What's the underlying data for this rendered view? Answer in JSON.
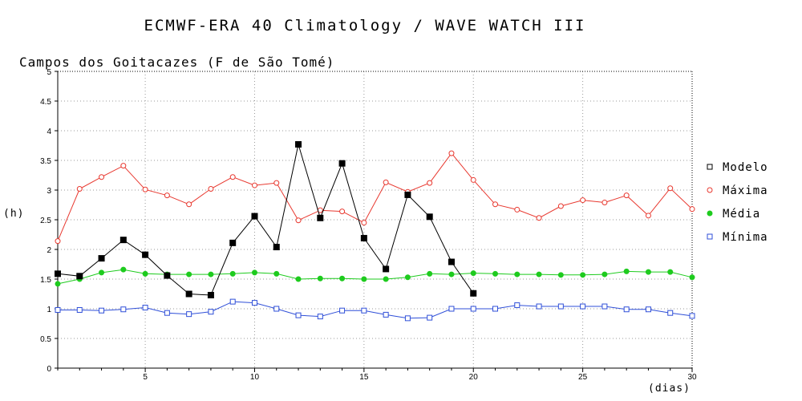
{
  "chart_data": {
    "type": "line",
    "title": "ECMWF-ERA 40 Climatology / WAVE WATCH III",
    "subtitle": "Campos dos Goitacazes (F de São Tomé)",
    "xlabel": "(dias)",
    "ylabel": "(h)",
    "xlim": [
      1,
      30
    ],
    "ylim": [
      0,
      5
    ],
    "x_ticks": [
      5,
      10,
      15,
      20,
      25,
      30
    ],
    "y_ticks": [
      0,
      0.5,
      1,
      1.5,
      2,
      2.5,
      3,
      3.5,
      4,
      4.5,
      5
    ],
    "grid": true,
    "legend_position": "right",
    "series": [
      {
        "name": "Modelo",
        "color": "#000000",
        "marker": "filled-square",
        "x": [
          1,
          2,
          3,
          4,
          5,
          6,
          7,
          8,
          9,
          10,
          11,
          12,
          13,
          14,
          15,
          16,
          17,
          18,
          19,
          20
        ],
        "values": [
          1.59,
          1.55,
          1.85,
          2.16,
          1.91,
          1.56,
          1.25,
          1.23,
          2.11,
          2.56,
          2.04,
          3.77,
          2.53,
          3.45,
          2.19,
          1.67,
          2.92,
          2.55,
          1.79,
          1.26
        ]
      },
      {
        "name": "Máxima",
        "color": "#e8382f",
        "marker": "open-circle",
        "x": [
          1,
          2,
          3,
          4,
          5,
          6,
          7,
          8,
          9,
          10,
          11,
          12,
          13,
          14,
          15,
          16,
          17,
          18,
          19,
          20,
          21,
          22,
          23,
          24,
          25,
          26,
          27,
          28,
          29,
          30
        ],
        "values": [
          2.14,
          3.02,
          3.22,
          3.41,
          3.01,
          2.91,
          2.76,
          3.02,
          3.22,
          3.08,
          3.12,
          2.49,
          2.66,
          2.64,
          2.45,
          3.13,
          2.97,
          3.12,
          3.62,
          3.17,
          2.76,
          2.67,
          2.53,
          2.73,
          2.83,
          2.79,
          2.91,
          2.57,
          3.03,
          2.68
        ]
      },
      {
        "name": "Média",
        "color": "#1ecb1e",
        "marker": "filled-circle",
        "x": [
          1,
          2,
          3,
          4,
          5,
          6,
          7,
          8,
          9,
          10,
          11,
          12,
          13,
          14,
          15,
          16,
          17,
          18,
          19,
          20,
          21,
          22,
          23,
          24,
          25,
          26,
          27,
          28,
          29,
          30
        ],
        "values": [
          1.42,
          1.5,
          1.61,
          1.66,
          1.59,
          1.58,
          1.58,
          1.58,
          1.59,
          1.61,
          1.59,
          1.5,
          1.51,
          1.51,
          1.5,
          1.5,
          1.53,
          1.59,
          1.58,
          1.6,
          1.59,
          1.58,
          1.58,
          1.57,
          1.57,
          1.58,
          1.63,
          1.62,
          1.62,
          1.53
        ]
      },
      {
        "name": "Mínima",
        "color": "#2f4fd8",
        "marker": "open-square",
        "x": [
          1,
          2,
          3,
          4,
          5,
          6,
          7,
          8,
          9,
          10,
          11,
          12,
          13,
          14,
          15,
          16,
          17,
          18,
          19,
          20,
          21,
          22,
          23,
          24,
          25,
          26,
          27,
          28,
          29,
          30
        ],
        "values": [
          0.98,
          0.98,
          0.97,
          0.99,
          1.02,
          0.93,
          0.91,
          0.95,
          1.12,
          1.1,
          1.0,
          0.89,
          0.87,
          0.97,
          0.97,
          0.9,
          0.84,
          0.85,
          1.0,
          1.0,
          1.0,
          1.06,
          1.04,
          1.04,
          1.04,
          1.04,
          0.99,
          0.99,
          0.93,
          0.88
        ]
      }
    ]
  }
}
